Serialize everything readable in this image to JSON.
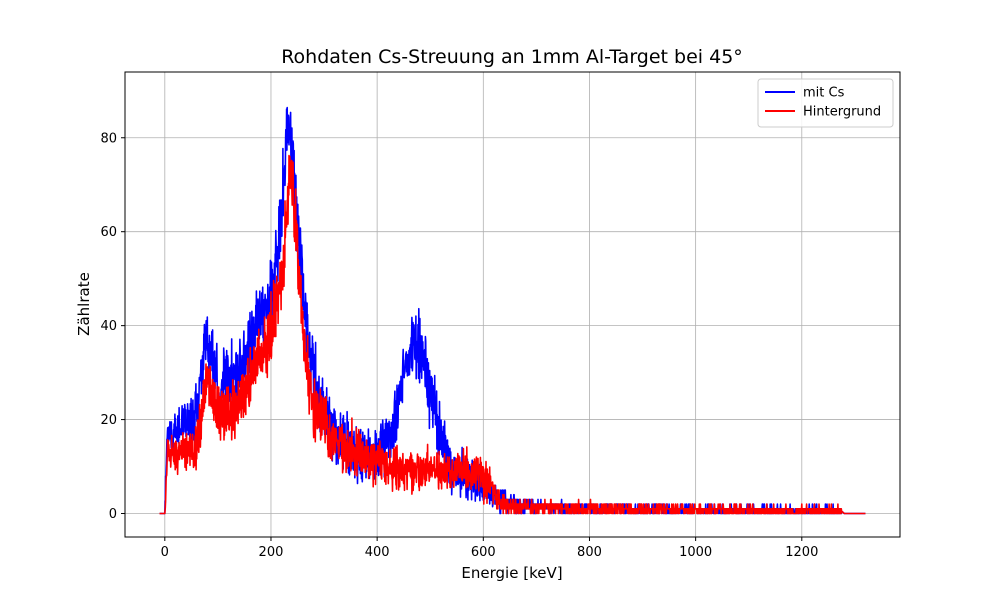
{
  "chart_data": {
    "type": "line",
    "title": "Rohdaten Cs-Streuung an 1mm Al-Target bei 45°",
    "xlabel": "Energie [keV]",
    "ylabel": "Zählrate",
    "xlim": [
      -75,
      1385
    ],
    "ylim": [
      -5,
      94
    ],
    "xticks": [
      0,
      200,
      400,
      600,
      800,
      1000,
      1200
    ],
    "yticks": [
      0,
      20,
      40,
      60,
      80
    ],
    "grid": true,
    "legend_position": "top-right",
    "series": [
      {
        "name": "mit Cs",
        "color": "#0000ff",
        "profile": [
          [
            -10,
            0
          ],
          [
            0,
            0
          ],
          [
            2,
            8
          ],
          [
            5,
            18
          ],
          [
            15,
            17
          ],
          [
            30,
            19
          ],
          [
            45,
            20
          ],
          [
            60,
            22
          ],
          [
            68,
            28
          ],
          [
            75,
            38
          ],
          [
            85,
            34
          ],
          [
            100,
            28
          ],
          [
            120,
            27
          ],
          [
            140,
            30
          ],
          [
            160,
            35
          ],
          [
            180,
            42
          ],
          [
            200,
            45
          ],
          [
            210,
            52
          ],
          [
            220,
            65
          ],
          [
            230,
            82
          ],
          [
            237,
            80
          ],
          [
            245,
            68
          ],
          [
            255,
            55
          ],
          [
            265,
            42
          ],
          [
            275,
            32
          ],
          [
            290,
            24
          ],
          [
            310,
            18
          ],
          [
            330,
            15
          ],
          [
            360,
            13
          ],
          [
            390,
            12
          ],
          [
            410,
            14
          ],
          [
            430,
            18
          ],
          [
            450,
            30
          ],
          [
            470,
            36
          ],
          [
            490,
            33
          ],
          [
            510,
            22
          ],
          [
            530,
            13
          ],
          [
            550,
            9
          ],
          [
            580,
            7
          ],
          [
            610,
            5
          ],
          [
            630,
            3
          ],
          [
            650,
            2
          ],
          [
            700,
            1.5
          ],
          [
            800,
            1
          ],
          [
            1000,
            0.8
          ],
          [
            1200,
            0.6
          ],
          [
            1275,
            0.5
          ],
          [
            1280,
            0
          ],
          [
            1320,
            0
          ]
        ],
        "spread": [
          [
            0,
            5
          ],
          [
            100,
            10
          ],
          [
            230,
            12
          ],
          [
            300,
            10
          ],
          [
            400,
            8
          ],
          [
            500,
            11
          ],
          [
            560,
            7
          ],
          [
            620,
            4
          ],
          [
            700,
            2
          ],
          [
            1300,
            1.5
          ]
        ]
      },
      {
        "name": "Hintergrund",
        "color": "#ff0000",
        "profile": [
          [
            -10,
            0
          ],
          [
            0,
            0
          ],
          [
            2,
            6
          ],
          [
            5,
            12
          ],
          [
            30,
            13
          ],
          [
            60,
            14
          ],
          [
            70,
            22
          ],
          [
            80,
            28
          ],
          [
            100,
            22
          ],
          [
            130,
            22
          ],
          [
            160,
            28
          ],
          [
            190,
            36
          ],
          [
            210,
            42
          ],
          [
            225,
            55
          ],
          [
            235,
            72
          ],
          [
            242,
            68
          ],
          [
            250,
            55
          ],
          [
            262,
            38
          ],
          [
            275,
            25
          ],
          [
            300,
            18
          ],
          [
            340,
            14
          ],
          [
            400,
            11
          ],
          [
            450,
            9
          ],
          [
            500,
            9
          ],
          [
            550,
            9
          ],
          [
            590,
            9
          ],
          [
            620,
            5
          ],
          [
            635,
            2
          ],
          [
            660,
            1.5
          ],
          [
            800,
            1
          ],
          [
            1000,
            0.8
          ],
          [
            1200,
            0.6
          ],
          [
            1275,
            0.5
          ],
          [
            1280,
            0
          ],
          [
            1320,
            0
          ]
        ],
        "spread": [
          [
            0,
            5
          ],
          [
            100,
            9
          ],
          [
            230,
            10
          ],
          [
            300,
            9
          ],
          [
            400,
            7
          ],
          [
            500,
            6
          ],
          [
            600,
            6
          ],
          [
            640,
            3
          ],
          [
            700,
            2
          ],
          [
            1300,
            1.5
          ]
        ]
      }
    ]
  }
}
